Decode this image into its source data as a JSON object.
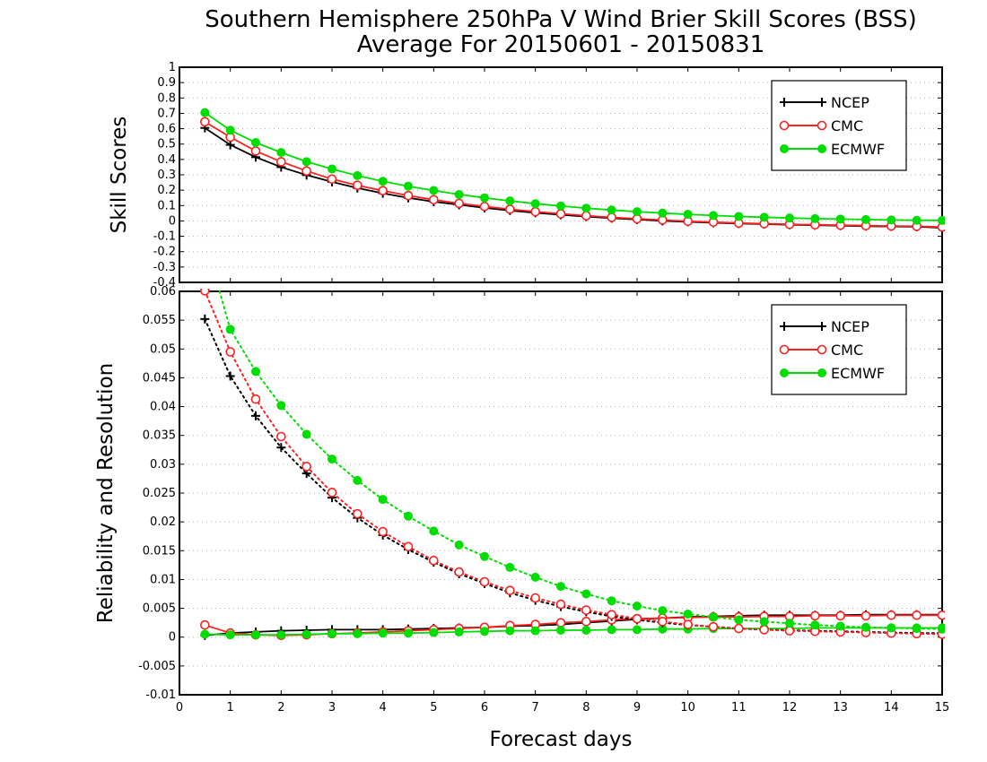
{
  "title": "Southern Hemisphere 250hPa V Wind Brier Skill Scores (BSS)",
  "subtitle": "Average For 20150601 - 20150831",
  "chart_data": [
    {
      "type": "line",
      "ylabel": "Skill Scores",
      "xlim": [
        0,
        15
      ],
      "ylim": [
        -0.4,
        1
      ],
      "grid": true,
      "legend": "top-right",
      "xticks": [
        "0",
        "1",
        "2",
        "3",
        "4",
        "5",
        "6",
        "7",
        "8",
        "9",
        "10",
        "11",
        "12",
        "13",
        "14",
        "15"
      ],
      "yticks": [
        "-0.4",
        "-0.3",
        "-0.2",
        "-0.1",
        "0",
        "0.1",
        "0.2",
        "0.3",
        "0.4",
        "0.5",
        "0.6",
        "0.7",
        "0.8",
        "0.9",
        "1"
      ],
      "x": [
        0.5,
        1,
        1.5,
        2,
        2.5,
        3,
        3.5,
        4,
        4.5,
        5,
        5.5,
        6,
        6.5,
        7,
        7.5,
        8,
        8.5,
        9,
        9.5,
        10,
        10.5,
        11,
        11.5,
        12,
        12.5,
        13,
        13.5,
        14,
        14.5,
        15
      ],
      "series": [
        {
          "name": "NCEP",
          "color": "#000000",
          "marker": "plus",
          "values": [
            0.605,
            0.495,
            0.415,
            0.35,
            0.298,
            0.254,
            0.214,
            0.18,
            0.15,
            0.125,
            0.105,
            0.085,
            0.068,
            0.053,
            0.04,
            0.028,
            0.018,
            0.009,
            0.0,
            -0.006,
            -0.012,
            -0.017,
            -0.021,
            -0.025,
            -0.028,
            -0.031,
            -0.034,
            -0.036,
            -0.038,
            -0.045
          ]
        },
        {
          "name": "CMC",
          "color": "#ff2020",
          "marker": "open-circle",
          "values": [
            0.645,
            0.545,
            0.455,
            0.385,
            0.325,
            0.272,
            0.232,
            0.197,
            0.165,
            0.138,
            0.114,
            0.094,
            0.076,
            0.06,
            0.046,
            0.034,
            0.023,
            0.014,
            0.006,
            -0.002,
            -0.008,
            -0.014,
            -0.018,
            -0.022,
            -0.025,
            -0.028,
            -0.031,
            -0.033,
            -0.035,
            -0.04
          ]
        },
        {
          "name": "ECMWF",
          "color": "#00dd00",
          "marker": "filled-circle",
          "values": [
            0.705,
            0.59,
            0.51,
            0.445,
            0.385,
            0.338,
            0.295,
            0.258,
            0.226,
            0.198,
            0.172,
            0.15,
            0.13,
            0.112,
            0.097,
            0.083,
            0.071,
            0.06,
            0.051,
            0.043,
            0.035,
            0.029,
            0.024,
            0.019,
            0.015,
            0.012,
            0.009,
            0.006,
            0.004,
            0.003
          ]
        }
      ]
    },
    {
      "type": "line",
      "ylabel": "Reliability and Resolution",
      "xlabel": "Forecast days",
      "xlim": [
        0,
        15
      ],
      "ylim": [
        -0.01,
        0.06
      ],
      "grid": true,
      "legend": "top-right",
      "xticks": [
        "0",
        "1",
        "2",
        "3",
        "4",
        "5",
        "6",
        "7",
        "8",
        "9",
        "10",
        "11",
        "12",
        "13",
        "14",
        "15"
      ],
      "yticks": [
        "-0.01",
        "-0.005",
        "0",
        "0.005",
        "0.01",
        "0.015",
        "0.02",
        "0.025",
        "0.03",
        "0.035",
        "0.04",
        "0.045",
        "0.05",
        "0.055",
        "0.06"
      ],
      "x": [
        0.5,
        1,
        1.5,
        2,
        2.5,
        3,
        3.5,
        4,
        4.5,
        5,
        5.5,
        6,
        6.5,
        7,
        7.5,
        8,
        8.5,
        9,
        9.5,
        10,
        10.5,
        11,
        11.5,
        12,
        12.5,
        13,
        13.5,
        14,
        14.5,
        15
      ],
      "series": [
        {
          "name": "NCEP",
          "color": "#000000",
          "marker": "plus",
          "line": "solid",
          "values": [
            0.0003,
            0.0007,
            0.0009,
            0.0011,
            0.0012,
            0.0013,
            0.0013,
            0.0013,
            0.0014,
            0.0015,
            0.0016,
            0.0017,
            0.0019,
            0.002,
            0.0022,
            0.0025,
            0.0028,
            0.0031,
            0.0033,
            0.0035,
            0.0036,
            0.0037,
            0.0038,
            0.0038,
            0.0038,
            0.0038,
            0.0039,
            0.0039,
            0.0039,
            0.0039
          ]
        },
        {
          "name": "CMC",
          "color": "#ff2020",
          "marker": "open-circle",
          "line": "solid",
          "values": [
            0.0021,
            0.0007,
            0.0004,
            0.0003,
            0.0004,
            0.0006,
            0.0007,
            0.0009,
            0.0011,
            0.0013,
            0.0015,
            0.0017,
            0.002,
            0.0022,
            0.0025,
            0.0027,
            0.003,
            0.0032,
            0.0033,
            0.0034,
            0.0035,
            0.0035,
            0.0036,
            0.0036,
            0.0037,
            0.0037,
            0.0037,
            0.0038,
            0.0038,
            0.0038
          ]
        },
        {
          "name": "ECMWF",
          "color": "#00dd00",
          "marker": "filled-circle",
          "line": "solid",
          "values": [
            0.0005,
            0.0004,
            0.0004,
            0.0004,
            0.0005,
            0.0006,
            0.0006,
            0.0007,
            0.0007,
            0.0008,
            0.0009,
            0.001,
            0.0011,
            0.0011,
            0.0012,
            0.0012,
            0.0013,
            0.0013,
            0.0014,
            0.0014,
            0.0015,
            0.0015,
            0.0015,
            0.0015,
            0.0016,
            0.0016,
            0.0016,
            0.0016,
            0.0016,
            0.0016
          ]
        },
        {
          "name": "NCEP",
          "color": "#000000",
          "marker": "plus",
          "line": "dotted",
          "values": [
            0.0552,
            0.0453,
            0.0384,
            0.0329,
            0.0284,
            0.0242,
            0.0207,
            0.0177,
            0.0152,
            0.013,
            0.011,
            0.0093,
            0.0077,
            0.0064,
            0.0053,
            0.0044,
            0.0036,
            0.003,
            0.0025,
            0.0021,
            0.0018,
            0.0015,
            0.0013,
            0.0012,
            0.0011,
            0.001,
            0.0009,
            0.0008,
            0.0007,
            0.0007
          ]
        },
        {
          "name": "CMC",
          "color": "#ff2020",
          "marker": "open-circle",
          "line": "dotted",
          "values": [
            0.0601,
            0.0495,
            0.0413,
            0.0348,
            0.0296,
            0.0251,
            0.0214,
            0.0183,
            0.0157,
            0.0133,
            0.0113,
            0.0096,
            0.0081,
            0.0068,
            0.0057,
            0.0047,
            0.0039,
            0.0032,
            0.0027,
            0.0022,
            0.0018,
            0.0015,
            0.0013,
            0.0011,
            0.001,
            0.0009,
            0.0008,
            0.0007,
            0.0006,
            0.0005
          ]
        },
        {
          "name": "ECMWF",
          "color": "#00dd00",
          "marker": "filled-circle",
          "line": "dotted",
          "values": [
            0.069,
            0.0534,
            0.0461,
            0.0402,
            0.0352,
            0.0309,
            0.0272,
            0.0239,
            0.021,
            0.0184,
            0.016,
            0.014,
            0.0121,
            0.0104,
            0.0088,
            0.0075,
            0.0063,
            0.0054,
            0.0046,
            0.004,
            0.0035,
            0.003,
            0.0027,
            0.0024,
            0.0021,
            0.0019,
            0.0017,
            0.0016,
            0.0015,
            0.0014
          ]
        }
      ]
    }
  ]
}
